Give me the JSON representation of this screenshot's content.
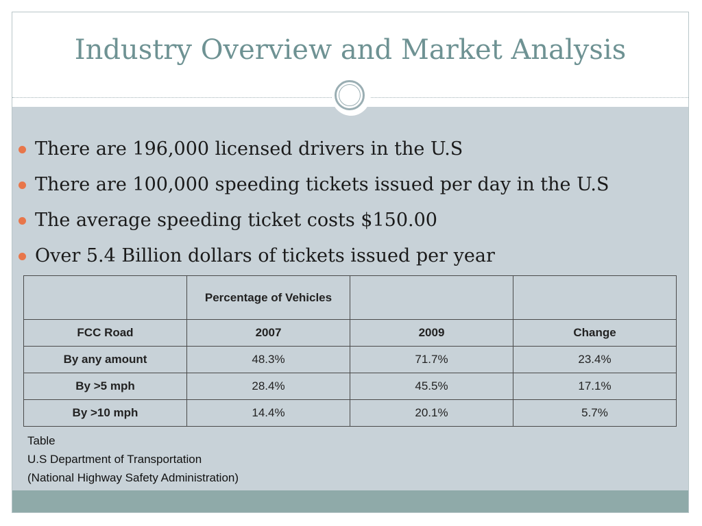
{
  "slide": {
    "title": "Industry Overview and Market Analysis",
    "bullets": [
      "There are 196,000 licensed drivers in the U.S",
      "There are 100,000 speeding tickets issued per day in the U.S",
      "The average speeding ticket costs $150.00",
      "Over 5.4 Billion dollars of tickets issued per year"
    ],
    "table": {
      "group_header": [
        "",
        "Percentage of Vehicles",
        "",
        ""
      ],
      "columns": [
        "FCC Road",
        "2007",
        "2009",
        "Change"
      ],
      "rows": [
        [
          "By any amount",
          "48.3%",
          "71.7%",
          "23.4%"
        ],
        [
          "By >5 mph",
          "28.4%",
          "45.5%",
          "17.1%"
        ],
        [
          "By >10 mph",
          "14.4%",
          "20.1%",
          "5.7%"
        ]
      ]
    },
    "caption": [
      "Table",
      "U.S Department of Transportation",
      "(National Highway Safety Administration)"
    ],
    "colors": {
      "title": "#6e9293",
      "content_background": "#c8d2d8",
      "footer_bar": "#8faaa9",
      "bullet": "#e8764a"
    }
  }
}
